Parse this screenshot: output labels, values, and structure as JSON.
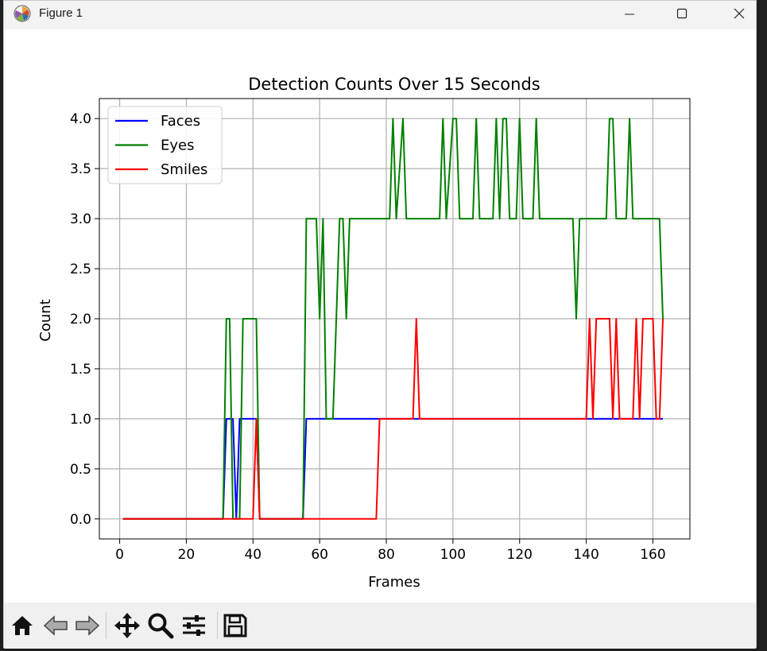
{
  "window": {
    "title": "Figure 1"
  },
  "toolbar": {
    "buttons": [
      "home-icon",
      "back-icon",
      "forward-icon",
      "pan-icon",
      "zoom-icon",
      "configure-icon",
      "save-icon"
    ]
  },
  "colors": {
    "faces": "#0000ff",
    "eyes": "#008000",
    "smiles": "#ff0000",
    "grid": "#b0b0b0"
  },
  "chart_data": {
    "type": "line",
    "title": "Detection Counts Over 15 Seconds",
    "xlabel": "Frames",
    "ylabel": "Count",
    "xlim": [
      -6.1,
      171.1
    ],
    "ylim": [
      -0.2,
      4.2
    ],
    "xticks": [
      0,
      20,
      40,
      60,
      80,
      100,
      120,
      140,
      160
    ],
    "yticks": [
      0.0,
      0.5,
      1.0,
      1.5,
      2.0,
      2.5,
      3.0,
      3.5,
      4.0
    ],
    "grid": true,
    "legend_position": "upper-left",
    "series": [
      {
        "name": "Faces",
        "color": "#0000ff",
        "points": [
          [
            1,
            0
          ],
          [
            31,
            0
          ],
          [
            32,
            1
          ],
          [
            34,
            1
          ],
          [
            35,
            0
          ],
          [
            36,
            1
          ],
          [
            41,
            1
          ],
          [
            42,
            0
          ],
          [
            55,
            0
          ],
          [
            56,
            1
          ],
          [
            163,
            1
          ]
        ]
      },
      {
        "name": "Eyes",
        "color": "#008000",
        "points": [
          [
            1,
            0
          ],
          [
            31,
            0
          ],
          [
            32,
            2
          ],
          [
            33,
            2
          ],
          [
            34,
            0
          ],
          [
            36,
            0
          ],
          [
            37,
            2
          ],
          [
            41,
            2
          ],
          [
            42,
            0
          ],
          [
            55,
            0
          ],
          [
            56,
            3
          ],
          [
            59,
            3
          ],
          [
            60,
            2
          ],
          [
            61,
            3
          ],
          [
            62,
            1
          ],
          [
            64,
            1
          ],
          [
            66,
            3
          ],
          [
            67,
            3
          ],
          [
            68,
            2
          ],
          [
            69,
            3
          ],
          [
            81,
            3
          ],
          [
            82,
            4
          ],
          [
            83,
            3
          ],
          [
            85,
            4
          ],
          [
            86,
            3
          ],
          [
            96,
            3
          ],
          [
            97,
            4
          ],
          [
            98,
            3
          ],
          [
            100,
            4
          ],
          [
            101,
            4
          ],
          [
            102,
            3
          ],
          [
            106,
            3
          ],
          [
            107,
            4
          ],
          [
            108,
            3
          ],
          [
            112,
            3
          ],
          [
            113,
            4
          ],
          [
            114,
            3
          ],
          [
            115,
            4
          ],
          [
            116,
            4
          ],
          [
            117,
            3
          ],
          [
            119,
            3
          ],
          [
            120,
            4
          ],
          [
            121,
            3
          ],
          [
            124,
            3
          ],
          [
            125,
            4
          ],
          [
            126,
            3
          ],
          [
            136,
            3
          ],
          [
            137,
            2
          ],
          [
            138,
            3
          ],
          [
            146,
            3
          ],
          [
            147,
            4
          ],
          [
            148,
            4
          ],
          [
            149,
            3
          ],
          [
            152,
            3
          ],
          [
            153,
            4
          ],
          [
            154,
            3
          ],
          [
            162,
            3
          ],
          [
            163,
            2
          ]
        ]
      },
      {
        "name": "Smiles",
        "color": "#ff0000",
        "points": [
          [
            1,
            0
          ],
          [
            40,
            0
          ],
          [
            41,
            1
          ],
          [
            42,
            0
          ],
          [
            77,
            0
          ],
          [
            78,
            1
          ],
          [
            88,
            1
          ],
          [
            89,
            2
          ],
          [
            90,
            1
          ],
          [
            140,
            1
          ],
          [
            141,
            2
          ],
          [
            142,
            1
          ],
          [
            143,
            2
          ],
          [
            147,
            2
          ],
          [
            148,
            1
          ],
          [
            149,
            2
          ],
          [
            150,
            1
          ],
          [
            154,
            1
          ],
          [
            155,
            2
          ],
          [
            156,
            1
          ],
          [
            157,
            2
          ],
          [
            160,
            2
          ],
          [
            161,
            1
          ],
          [
            162,
            1
          ],
          [
            163,
            2
          ]
        ]
      }
    ]
  }
}
